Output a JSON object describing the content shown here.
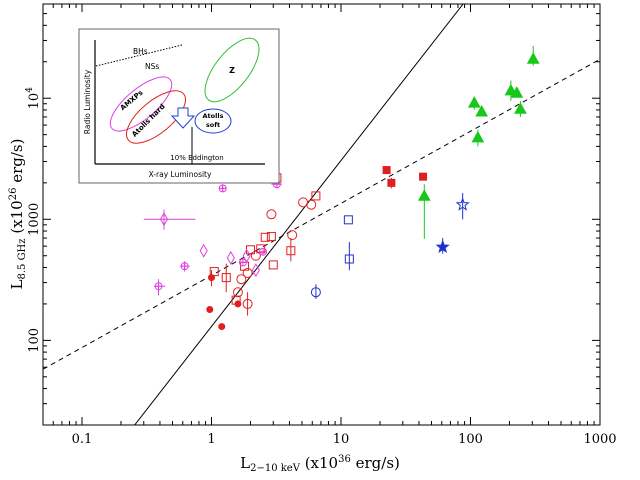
{
  "chart_data": {
    "type": "scatter",
    "xscale": "log",
    "yscale": "log",
    "xlim": [
      0.05,
      1000
    ],
    "ylim": [
      20,
      60000
    ],
    "xlabel_main": "L",
    "xlabel_sub": "2−10 keV",
    "xlabel_rest": " (x10",
    "xlabel_sup": "36",
    "xlabel_end": " erg/s)",
    "ylabel_main": "L",
    "ylabel_sub": "8.5 GHz",
    "ylabel_rest": " (x10",
    "ylabel_sup": "26",
    "ylabel_end": " erg/s)",
    "x_ticks": [
      {
        "value": 0.1,
        "label": "0.1"
      },
      {
        "value": 1,
        "label": "1"
      },
      {
        "value": 10,
        "label": "10"
      },
      {
        "value": 100,
        "label": "100"
      },
      {
        "value": 1000,
        "label": "1000"
      }
    ],
    "y_ticks": [
      {
        "value": 100,
        "label": "100"
      },
      {
        "value": 1000,
        "label": "1000"
      }
    ],
    "y_tick_top": {
      "value": 10000,
      "base": "10",
      "exp": "4"
    },
    "lines": [
      {
        "style": "solid",
        "x": [
          0.255,
          87.7
        ],
        "y": [
          20,
          60000
        ]
      },
      {
        "style": "dashed",
        "x": [
          0.05,
          1000
        ],
        "y": [
          57.8,
          21000
        ]
      }
    ],
    "series": [
      {
        "marker": "circle-open",
        "color": "#e02020",
        "points": [
          {
            "x": 1.7,
            "y": 320
          },
          {
            "x": 1.9,
            "y": 360
          },
          {
            "x": 2.2,
            "y": 500
          },
          {
            "x": 2.9,
            "y": 1100
          },
          {
            "x": 4.2,
            "y": 740
          },
          {
            "x": 5.1,
            "y": 1380
          },
          {
            "x": 5.9,
            "y": 1320
          },
          {
            "x": 1.9,
            "y": 200
          },
          {
            "x": 1.6,
            "y": 250
          }
        ]
      },
      {
        "marker": "square-open",
        "color": "#e02020",
        "points": [
          {
            "x": 1.05,
            "y": 370
          },
          {
            "x": 1.3,
            "y": 330
          },
          {
            "x": 1.55,
            "y": 215
          },
          {
            "x": 1.8,
            "y": 410
          },
          {
            "x": 2.0,
            "y": 560
          },
          {
            "x": 2.4,
            "y": 570
          },
          {
            "x": 2.6,
            "y": 710
          },
          {
            "x": 2.9,
            "y": 720
          },
          {
            "x": 3.0,
            "y": 420
          },
          {
            "x": 4.1,
            "y": 550
          },
          {
            "x": 6.4,
            "y": 1560
          },
          {
            "x": 3.2,
            "y": 2200
          }
        ]
      },
      {
        "marker": "circle-filled",
        "color": "#e02020",
        "points": [
          {
            "x": 1.0,
            "y": 330
          },
          {
            "x": 0.97,
            "y": 180
          },
          {
            "x": 1.6,
            "y": 200
          },
          {
            "x": 1.2,
            "y": 130
          }
        ]
      },
      {
        "marker": "square-filled",
        "color": "#e02020",
        "points": [
          {
            "x": 22.5,
            "y": 2550
          },
          {
            "x": 24.5,
            "y": 2000
          },
          {
            "x": 43,
            "y": 2250
          }
        ]
      },
      {
        "marker": "circle-open",
        "color": "#2030d0",
        "points": [
          {
            "x": 6.4,
            "y": 250
          }
        ]
      },
      {
        "marker": "square-open",
        "color": "#2030d0",
        "points": [
          {
            "x": 11.4,
            "y": 990
          },
          {
            "x": 11.6,
            "y": 470
          }
        ]
      },
      {
        "marker": "star-filled",
        "color": "#2030d0",
        "points": [
          {
            "x": 61,
            "y": 590
          }
        ]
      },
      {
        "marker": "star-open",
        "color": "#2030d0",
        "points": [
          {
            "x": 87,
            "y": 1320
          }
        ]
      },
      {
        "marker": "triangle-filled",
        "color": "#18c818",
        "points": [
          {
            "x": 44,
            "y": 1550
          },
          {
            "x": 107,
            "y": 9100
          },
          {
            "x": 114,
            "y": 4700
          },
          {
            "x": 122,
            "y": 7700
          },
          {
            "x": 205,
            "y": 11500
          },
          {
            "x": 228,
            "y": 11000
          },
          {
            "x": 243,
            "y": 8100
          },
          {
            "x": 305,
            "y": 21000
          }
        ]
      },
      {
        "marker": "diamond-open",
        "color": "#e040e0",
        "points": [
          {
            "x": 0.43,
            "y": 1000
          },
          {
            "x": 0.87,
            "y": 550
          },
          {
            "x": 1.41,
            "y": 480
          },
          {
            "x": 2.2,
            "y": 380
          },
          {
            "x": 1.87,
            "y": 500
          }
        ]
      },
      {
        "marker": "circle-cross",
        "color": "#e040e0",
        "points": [
          {
            "x": 0.39,
            "y": 280
          },
          {
            "x": 0.62,
            "y": 410
          },
          {
            "x": 1.22,
            "y": 1800
          },
          {
            "x": 2.85,
            "y": 2200
          },
          {
            "x": 3.2,
            "y": 1950
          },
          {
            "x": 1.75,
            "y": 440
          },
          {
            "x": 2.5,
            "y": 540
          }
        ]
      }
    ],
    "errorbars": [
      {
        "x": 0.43,
        "y": 1000,
        "xerr": [
          0.3,
          0.75
        ],
        "yerr": [
          820,
          1200
        ]
      },
      {
        "x": 0.39,
        "y": 280,
        "xerr": [
          0.36,
          0.44
        ],
        "yerr": [
          235,
          320
        ]
      },
      {
        "x": 0.62,
        "y": 410,
        "xerr": [
          0.57,
          0.68
        ],
        "yerr": [
          370,
          450
        ]
      },
      {
        "x": 1.22,
        "y": 1800,
        "xerr": [
          1.15,
          1.3
        ],
        "yerr": [
          1700,
          1900
        ]
      },
      {
        "x": 2.85,
        "y": 2200,
        "xerr": [
          2.6,
          3.1
        ],
        "yerr": [
          2050,
          2380
        ]
      },
      {
        "x": 3.2,
        "y": 1950,
        "xerr": [
          2.9,
          3.5
        ],
        "yerr": [
          1800,
          2100
        ]
      },
      {
        "x": 1.0,
        "y": 330,
        "xerr": [
          0.96,
          1.04
        ],
        "yerr": [
          280,
          380
        ]
      },
      {
        "x": 1.3,
        "y": 330,
        "xerr": [
          1.3,
          1.3
        ],
        "yerr": [
          250,
          430
        ]
      },
      {
        "x": 1.9,
        "y": 200,
        "xerr": [
          1.9,
          1.9
        ],
        "yerr": [
          160,
          250
        ]
      },
      {
        "x": 4.1,
        "y": 550,
        "xerr": [
          4.1,
          4.1
        ],
        "yerr": [
          450,
          700
        ]
      },
      {
        "x": 6.4,
        "y": 250,
        "xerr": [
          6.4,
          6.4
        ],
        "yerr": [
          220,
          290
        ]
      },
      {
        "x": 11.6,
        "y": 470,
        "xerr": [
          11.6,
          11.6
        ],
        "yerr": [
          380,
          650
        ]
      },
      {
        "x": 61,
        "y": 590,
        "xerr": [
          61,
          61
        ],
        "yerr": [
          520,
          700
        ]
      },
      {
        "x": 87,
        "y": 1320,
        "xerr": [
          87,
          87
        ],
        "yerr": [
          1000,
          1650
        ]
      },
      {
        "x": 44,
        "y": 1550,
        "xerr": [
          44,
          44
        ],
        "yerr": [
          690,
          1950
        ]
      },
      {
        "x": 107,
        "y": 9100,
        "xerr": [
          107,
          107
        ],
        "yerr": [
          8000,
          10300
        ]
      },
      {
        "x": 114,
        "y": 4700,
        "xerr": [
          114,
          114
        ],
        "yerr": [
          4000,
          5500
        ]
      },
      {
        "x": 205,
        "y": 11500,
        "xerr": [
          205,
          205
        ],
        "yerr": [
          9500,
          14000
        ]
      },
      {
        "x": 243,
        "y": 8100,
        "xerr": [
          243,
          243
        ],
        "yerr": [
          7000,
          9500
        ]
      },
      {
        "x": 305,
        "y": 21000,
        "xerr": [
          305,
          305
        ],
        "yerr": [
          18500,
          27000
        ]
      },
      {
        "x": 24.5,
        "y": 2000,
        "xerr": [
          24.5,
          24.5
        ],
        "yerr": [
          1800,
          2200
        ]
      }
    ],
    "inset": {
      "ylabel": "Radio Luminosity",
      "xlabel": "X-ray Luminosity",
      "bhs_label": "BHs",
      "nss_label": "NSs",
      "ellipse_z": {
        "label": "Z",
        "color": "#30c030"
      },
      "ellipse_amxp": {
        "label": "AMXPs",
        "color": "#e040e0"
      },
      "ellipse_atoll_hard": {
        "label": "Atolls hard",
        "color": "#e02020"
      },
      "ellipse_atoll_soft": {
        "label": "Atolls soft",
        "color": "#2040d0"
      },
      "eddington_label": "10% Eddington"
    }
  }
}
